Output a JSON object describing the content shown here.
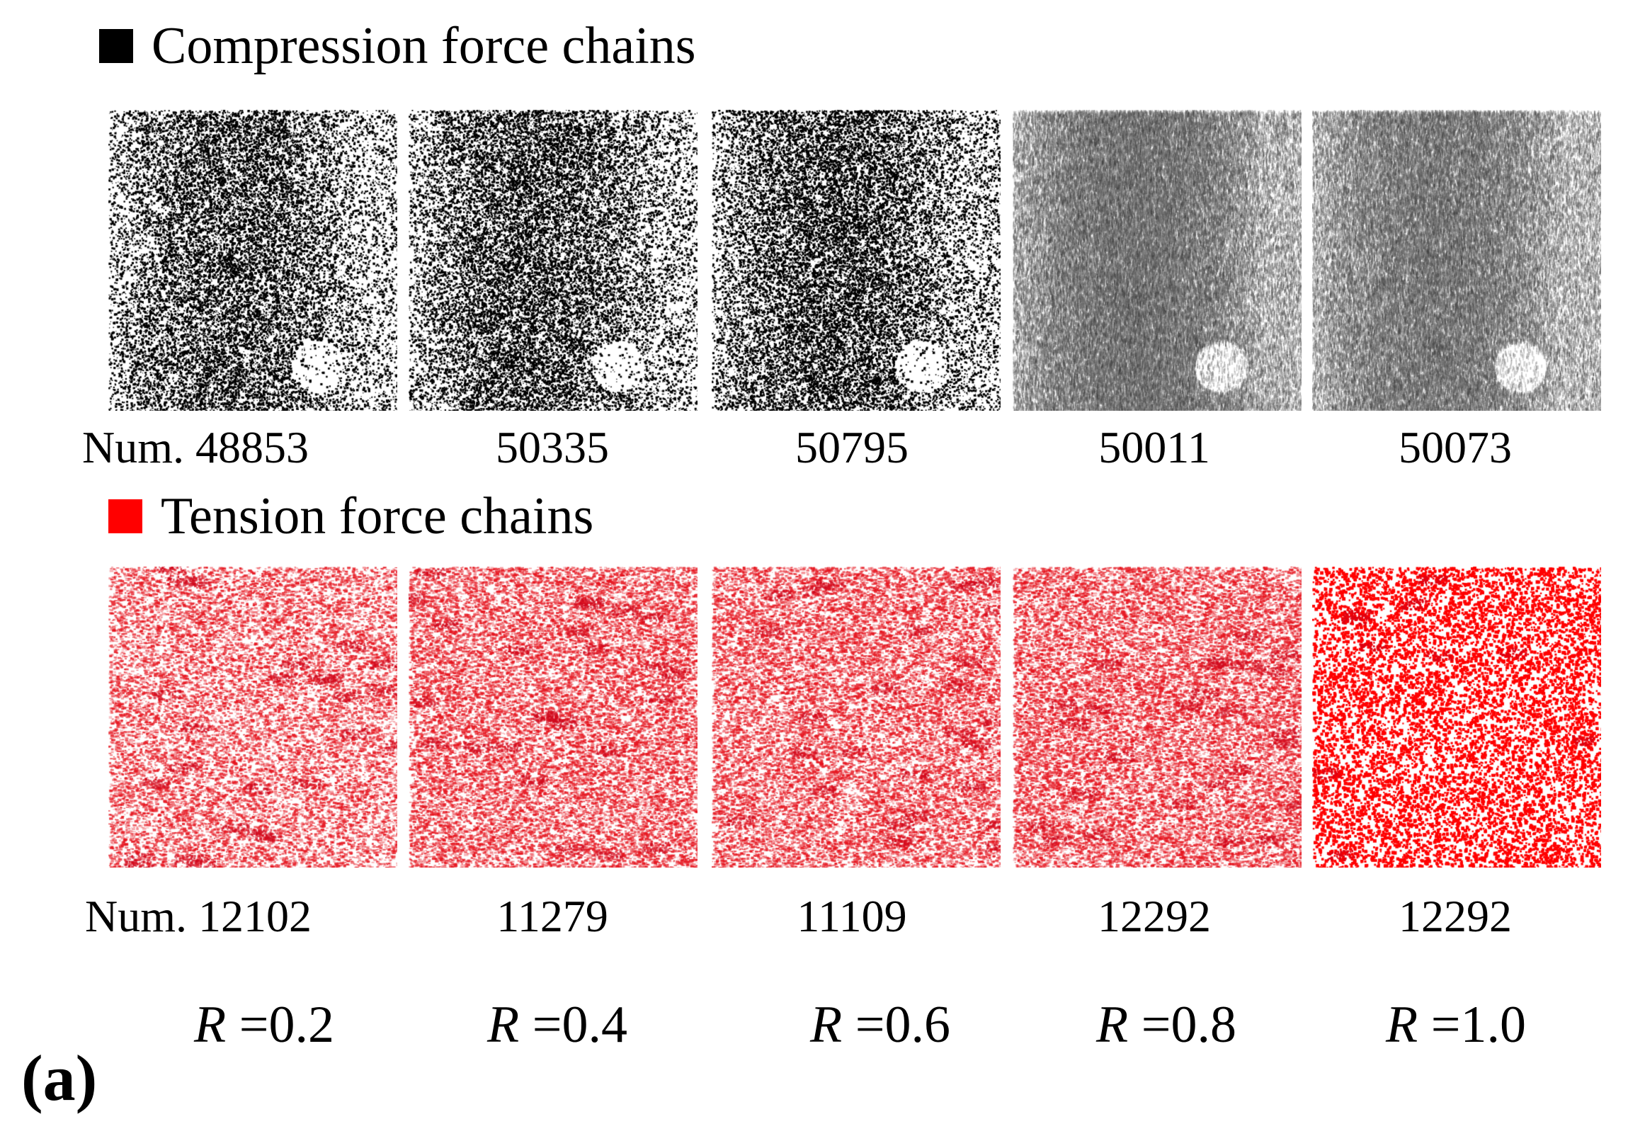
{
  "colors": {
    "compression": "#000000",
    "tension": "#ff0000"
  },
  "legend": {
    "compression_label": "Compression force chains",
    "tension_label": "Tension force chains"
  },
  "compression_counts": [
    "Num. 48853",
    "50335",
    "50795",
    "50011",
    "50073"
  ],
  "tension_counts": [
    "Num. 12102",
    "11279",
    "11109",
    "12292",
    "12292"
  ],
  "ratios": [
    {
      "symbol": "R",
      "value": "=0.2"
    },
    {
      "symbol": "R",
      "value": "=0.4"
    },
    {
      "symbol": "R",
      "value": "=0.6"
    },
    {
      "symbol": "R",
      "value": "=0.8"
    },
    {
      "symbol": "R",
      "value": "=1.0"
    }
  ],
  "panel_tag": "(a)",
  "panels": {
    "compression": [
      {
        "style": "speckle",
        "fill": 0.55
      },
      {
        "style": "speckle",
        "fill": 0.6
      },
      {
        "style": "speckle",
        "fill": 0.62
      },
      {
        "style": "grey",
        "fill": 0.7
      },
      {
        "style": "grey",
        "fill": 0.62
      }
    ],
    "tension": [
      {
        "style": "soft",
        "fill": 0.32
      },
      {
        "style": "soft",
        "fill": 0.4
      },
      {
        "style": "soft",
        "fill": 0.4
      },
      {
        "style": "soft",
        "fill": 0.42
      },
      {
        "style": "dense",
        "fill": 0.3
      }
    ]
  }
}
